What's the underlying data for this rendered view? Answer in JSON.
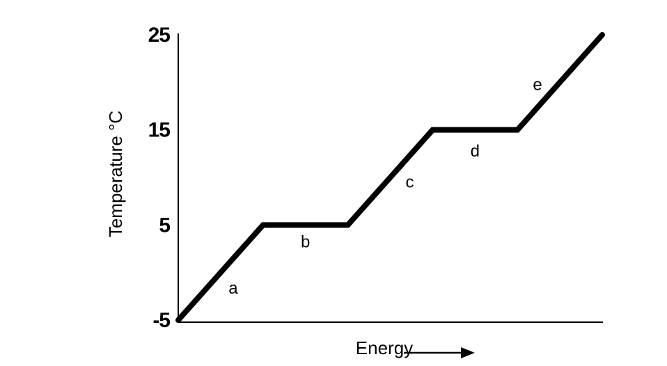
{
  "chart_data": {
    "type": "line",
    "x_label": "Energy",
    "y_label": "Temperature °C",
    "x": [
      0,
      1,
      2,
      3,
      4,
      5
    ],
    "values": [
      -5,
      5,
      5,
      15,
      15,
      25
    ],
    "color": "#000000",
    "xlim": [
      0,
      5
    ],
    "ylim": [
      -5,
      25
    ],
    "yticks": [
      -5,
      5,
      15,
      25
    ],
    "grid": false,
    "annotations": [
      "a",
      "b",
      "c",
      "d",
      "e"
    ]
  }
}
